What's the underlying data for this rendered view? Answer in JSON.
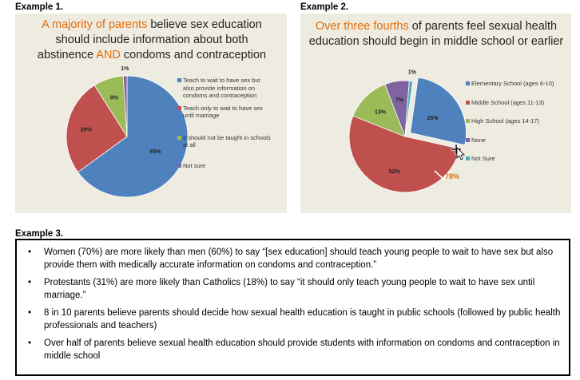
{
  "example1": {
    "label": "Example 1.",
    "title_pre": "A majority of parents",
    "title_mid1": " believe sex education should include information about both abstinence ",
    "title_and": "AND",
    "title_post": " condoms and contraception",
    "legend": [
      "Teach to wait to have sex but also provide information on condoms and contraception",
      "Teach only to wait to have sex until marriage",
      "It should not be taught in schools at all",
      "Not sure"
    ],
    "slice_labels": [
      "65%",
      "26%",
      "8%",
      "1%"
    ]
  },
  "example2": {
    "label": "Example 2.",
    "title_hl": "Over three fourths",
    "title_rest": " of parents feel sexual health education should begin in middle school or earlier",
    "legend": [
      "Elementary School (ages 6-10)",
      "Middle School (ages 11-13)",
      "High School (ages 14-17)",
      "None",
      "Not Sure"
    ],
    "slice_labels": [
      "26%",
      "52%",
      "13%",
      "7%",
      "1%"
    ],
    "bracket_label": "78%"
  },
  "example3": {
    "label": "Example 3.",
    "bullet": "•",
    "bullets": [
      "Women (70%) are more likely than men (60%) to say “[sex education] should teach young people to wait to have sex but also provide them with medically accurate information on condoms and contraception.”",
      "Protestants (31%) are more likely than Catholics (18%) to say “it should only teach young people to wait to have sex until marriage.”",
      "8 in 10 parents believe parents should decide how sexual health education is taught in public schools (followed by public health professionals and teachers)",
      "Over half of parents believe sexual health education should provide students with information on condoms and contraception in middle school"
    ]
  },
  "colors": {
    "blue": "#4f81bd",
    "red": "#c0504d",
    "green": "#9bbb59",
    "purple": "#8064a2",
    "teal": "#4bacc6",
    "orange": "#e46c0a",
    "panel": "#eeece1"
  },
  "chart_data": [
    {
      "type": "pie",
      "title": "A majority of parents believe sex education should include information about both abstinence AND condoms and contraception",
      "categories": [
        "Teach to wait to have sex but also provide information on condoms and contraception",
        "Teach only to wait to have sex until marriage",
        "It should not be taught in schools at all",
        "Not sure"
      ],
      "values": [
        65,
        26,
        8,
        1
      ],
      "colors": [
        "#4f81bd",
        "#c0504d",
        "#9bbb59",
        "#8064a2"
      ],
      "legend": "right"
    },
    {
      "type": "pie",
      "title": "Over three fourths of parents feel sexual health education should begin in middle school or earlier",
      "categories": [
        "Elementary School (ages 6-10)",
        "Middle School (ages 11-13)",
        "High School (ages 14-17)",
        "None",
        "Not Sure"
      ],
      "values": [
        26,
        52,
        13,
        7,
        1
      ],
      "colors": [
        "#4f81bd",
        "#c0504d",
        "#9bbb59",
        "#8064a2",
        "#4bacc6"
      ],
      "legend": "right",
      "annotation": "78%"
    }
  ]
}
